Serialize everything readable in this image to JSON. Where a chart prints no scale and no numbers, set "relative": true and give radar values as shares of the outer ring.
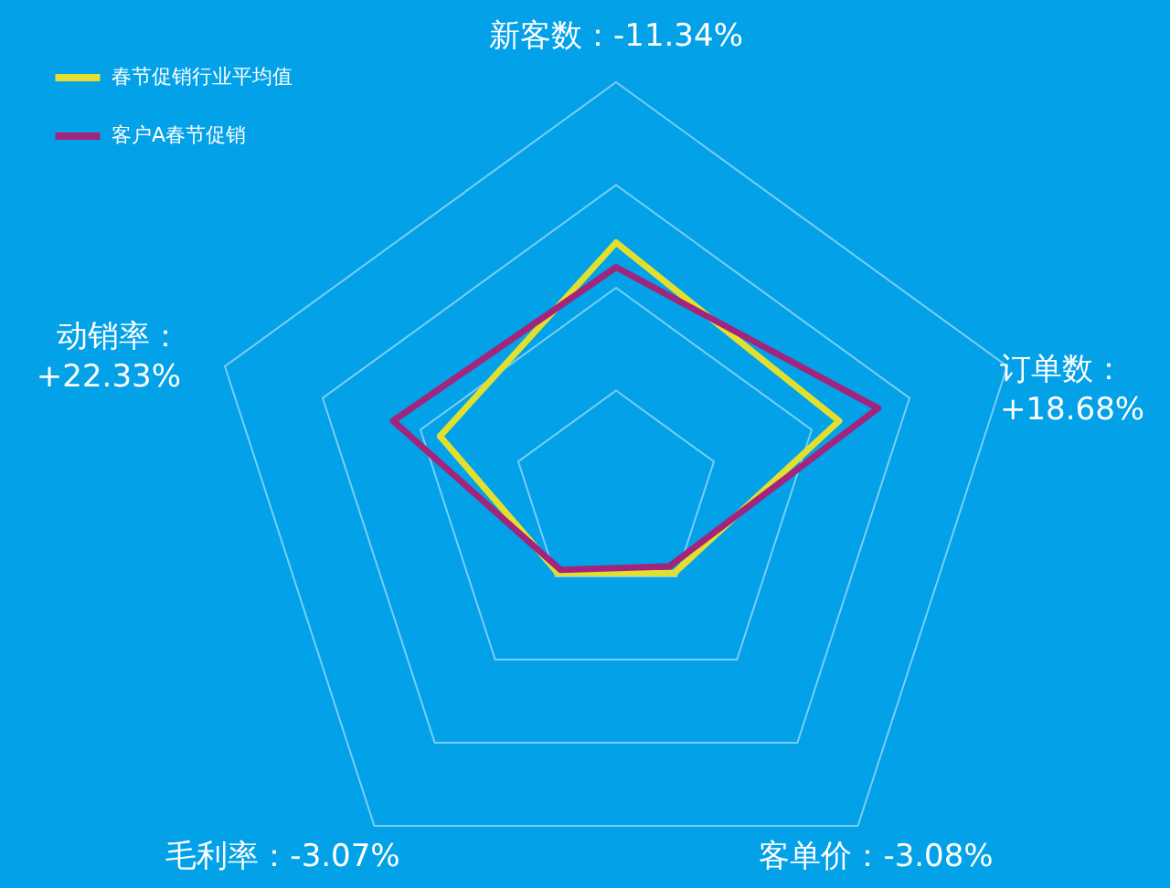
{
  "chart_data": {
    "type": "radar",
    "relative": true,
    "categories": [
      "新客数：-11.34%",
      "订单数：\n+18.68%",
      "客单价：-3.08%",
      "毛利率：-3.07%",
      "动销率：\n+22.33%"
    ],
    "series": [
      {
        "name": "春节促销行业平均值",
        "color": "#e3df2f",
        "values": [
          0.61,
          0.57,
          0.24,
          0.24,
          0.45
        ]
      },
      {
        "name": "客户A春节促销",
        "color": "#a3247c",
        "values": [
          0.55,
          0.67,
          0.22,
          0.23,
          0.57
        ]
      }
    ],
    "grid": true,
    "legend": "top left",
    "line_style": "solid"
  }
}
